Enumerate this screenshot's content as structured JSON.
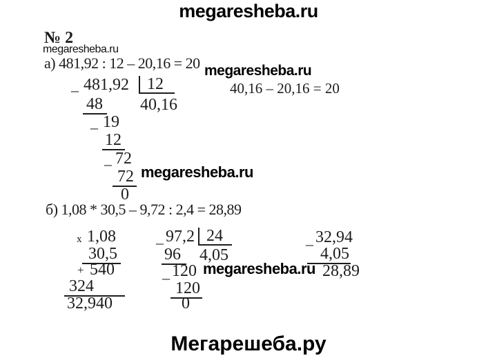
{
  "header": {
    "problem_number": "№ 2"
  },
  "watermarks": {
    "top": "megaresheba.ru",
    "under_title": "megaresheba.ru",
    "beside_part_a": "megaresheba.ru",
    "beside_division_a": "megaresheba.ru",
    "beside_part_b": "megaresheba.ru",
    "footer": "Мегарешеба.ру"
  },
  "signs": {
    "minus": "–",
    "times": "x",
    "plus": "+"
  },
  "part_a": {
    "equation": "а) 481,92 : 12 – 20,16 = 20",
    "division": {
      "dividend": "481,92",
      "divisor": "12",
      "quotient": "40,16",
      "sub1": "48",
      "rem1": "19",
      "sub2": "12",
      "rem2": "72",
      "sub3": "72",
      "remainder": "0"
    },
    "check": "40,16 – 20,16 = 20"
  },
  "part_b": {
    "equation": "б) 1,08 * 30,5 – 9,72 : 2,4 = 28,89",
    "multiplication": {
      "factor1": "1,08",
      "factor2": "30,5",
      "partial1": "540",
      "partial2": "324",
      "product": "32,940"
    },
    "division": {
      "dividend": "97,2",
      "divisor": "24",
      "quotient": "4,05",
      "sub1": "96",
      "rem1": "120",
      "sub2": "120",
      "remainder": "0"
    },
    "subtraction": {
      "minuend": "32,94",
      "subtrahend": "4,05",
      "difference": "28,89"
    }
  }
}
